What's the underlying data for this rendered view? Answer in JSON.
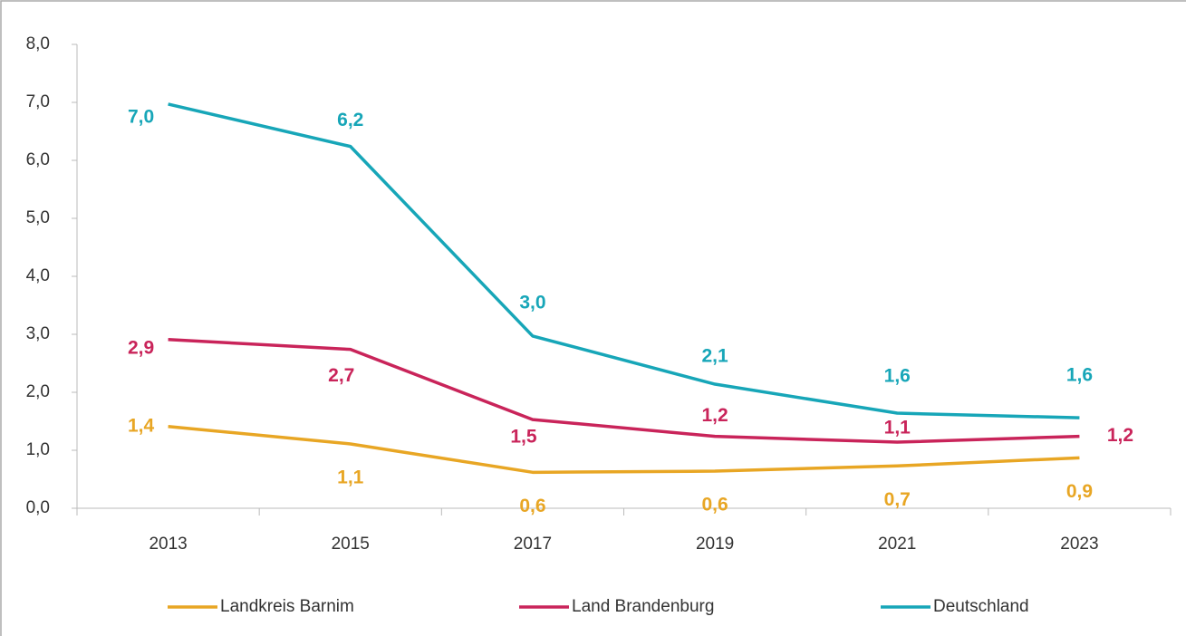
{
  "chart_data": {
    "type": "line",
    "categories": [
      "2013",
      "2015",
      "2017",
      "2019",
      "2021",
      "2023"
    ],
    "series": [
      {
        "name": "Landkreis Barnim",
        "color": "#e8a624",
        "values": [
          1.41,
          1.11,
          0.62,
          0.64,
          0.73,
          0.87
        ],
        "value_labels": [
          "1,4",
          "1,1",
          "0,6",
          "0,6",
          "0,7",
          "0,9"
        ]
      },
      {
        "name": "Land Brandenburg",
        "color": "#c9245a",
        "values": [
          2.91,
          2.74,
          1.53,
          1.24,
          1.14,
          1.24
        ],
        "value_labels": [
          "2,9",
          "2,7",
          "1,5",
          "1,2",
          "1,1",
          "1,2"
        ]
      },
      {
        "name": "Deutschland",
        "color": "#17a6b8",
        "values": [
          6.97,
          6.24,
          2.97,
          2.14,
          1.64,
          1.56
        ],
        "value_labels": [
          "7,0",
          "6,2",
          "3,0",
          "2,1",
          "1,6",
          "1,6"
        ]
      }
    ],
    "ylim": [
      0,
      8
    ],
    "yticks": [
      {
        "value": 0,
        "label": "0,0"
      },
      {
        "value": 1,
        "label": "1,0"
      },
      {
        "value": 2,
        "label": "2,0"
      },
      {
        "value": 3,
        "label": "3,0"
      },
      {
        "value": 4,
        "label": "4,0"
      },
      {
        "value": 5,
        "label": "5,0"
      },
      {
        "value": 6,
        "label": "6,0"
      },
      {
        "value": 7,
        "label": "7,0"
      },
      {
        "value": 8,
        "label": "8,0"
      }
    ],
    "legend": "bottom"
  }
}
